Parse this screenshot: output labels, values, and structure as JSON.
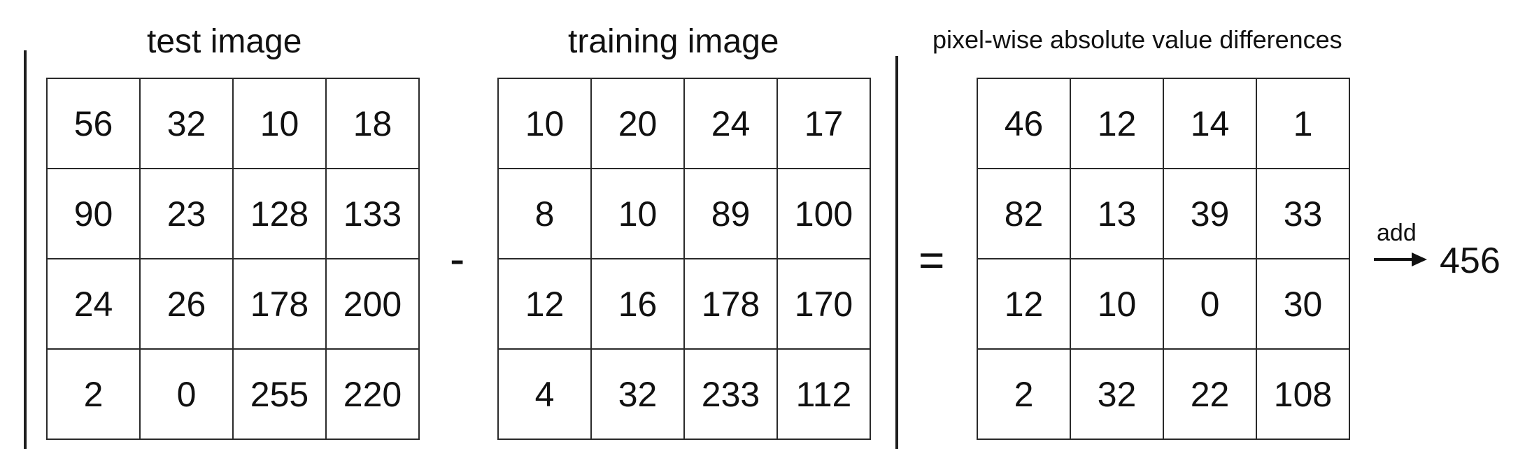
{
  "test": {
    "title": "test image",
    "rows": [
      [
        "56",
        "32",
        "10",
        "18"
      ],
      [
        "90",
        "23",
        "128",
        "133"
      ],
      [
        "24",
        "26",
        "178",
        "200"
      ],
      [
        "2",
        "0",
        "255",
        "220"
      ]
    ]
  },
  "training": {
    "title": "training image",
    "rows": [
      [
        "10",
        "20",
        "24",
        "17"
      ],
      [
        "8",
        "10",
        "89",
        "100"
      ],
      [
        "12",
        "16",
        "178",
        "170"
      ],
      [
        "4",
        "32",
        "233",
        "112"
      ]
    ]
  },
  "difference": {
    "title": "pixel-wise absolute value differences",
    "rows": [
      [
        "46",
        "12",
        "14",
        "1"
      ],
      [
        "82",
        "13",
        "39",
        "33"
      ],
      [
        "12",
        "10",
        "0",
        "30"
      ],
      [
        "2",
        "32",
        "22",
        "108"
      ]
    ]
  },
  "operators": {
    "minus": "-",
    "equals": "="
  },
  "sum": {
    "label": "add",
    "value": "456"
  }
}
